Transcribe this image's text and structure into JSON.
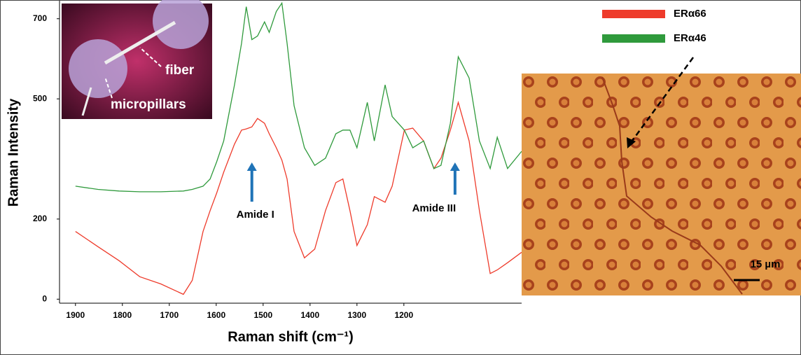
{
  "chart_data": {
    "type": "line",
    "xlabel": "Raman shift (cm⁻¹)",
    "ylabel": "Raman Intensity",
    "x": [
      1900,
      1852,
      1807,
      1763,
      1718,
      1670,
      1651,
      1628,
      1613,
      1599,
      1584,
      1561,
      1546,
      1536,
      1524,
      1512,
      1497,
      1487,
      1472,
      1460,
      1449,
      1434,
      1412,
      1390,
      1367,
      1345,
      1330,
      1315,
      1300,
      1278,
      1263,
      1240,
      1225,
      1199,
      1181,
      1158,
      1136,
      1121,
      1101,
      1084,
      1061,
      1039,
      1016,
      1001,
      979,
      949
    ],
    "xlim": [
      1934,
      949
    ],
    "xticks": [
      1900,
      1800,
      1700,
      1600,
      1500,
      1400,
      1300,
      1200
    ],
    "ylim": [
      -10,
      745
    ],
    "yticks": [
      0,
      200,
      500,
      700
    ],
    "series": [
      {
        "name": "ERα66",
        "color": "#ee3b2b",
        "values": [
          169,
          131,
          96,
          56,
          38,
          12,
          47,
          169,
          221,
          265,
          317,
          387,
          422,
          425,
          430,
          451,
          439,
          413,
          378,
          347,
          300,
          169,
          103,
          125,
          221,
          291,
          300,
          221,
          134,
          186,
          256,
          242,
          282,
          422,
          427,
          395,
          326,
          352,
          422,
          491,
          395,
          221,
          64,
          73,
          91,
          117
        ]
      },
      {
        "name": "ERα46",
        "color": "#2f9a3c",
        "values": [
          282,
          274,
          270,
          268,
          268,
          270,
          274,
          282,
          300,
          343,
          395,
          535,
          639,
          730,
          648,
          657,
          692,
          666,
          718,
          739,
          639,
          483,
          378,
          334,
          352,
          413,
          422,
          422,
          378,
          491,
          395,
          535,
          456,
          422,
          378,
          395,
          326,
          334,
          439,
          605,
          552,
          395,
          326,
          404,
          326,
          369
        ]
      }
    ],
    "annotations": [
      {
        "text": "Amide I",
        "x": 1524
      },
      {
        "text": "Amide III",
        "x": 1091
      }
    ]
  },
  "insets": {
    "fiber_label": "fiber",
    "pillars_label": "micropillars",
    "scale_bar": "15 µm"
  }
}
